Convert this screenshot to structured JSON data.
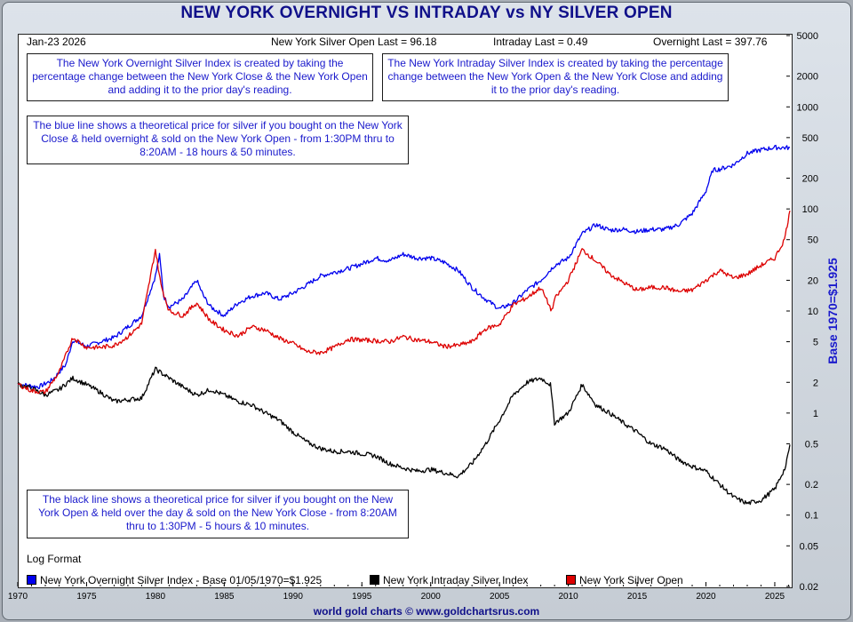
{
  "header": {
    "title": "NEW YORK OVERNIGHT VS INTRADAY vs NY SILVER OPEN",
    "date": "Jan-23  2026",
    "open_last": "New York Silver Open Last = 96.18",
    "intraday_last": "Intraday Last = 0.49",
    "overnight_last": "Overnight Last = 397.76"
  },
  "notes": {
    "overnight_def": "The New York Overnight Silver Index is created by taking the percentage change between the New York Close & the New York Open and adding it to the prior day's reading.",
    "intraday_def": "The New York Intraday Silver Index is created by taking the percentage change between the New York Open & the New York Close and adding it to the prior day's reading.",
    "blue_line": "The blue line shows a theoretical price for silver if you bought on the New York Close & held overnight & sold on the New York Open - from 1:30PM thru to 8:20AM - 18 hours & 50 minutes.",
    "black_line": "The black line shows a theoretical price for silver if you bought on the New York Open & held over the day & sold on the New York Close - from 8:20AM thru to 1:30PM - 5 hours & 10 minutes."
  },
  "footer": {
    "log_format": "Log Format",
    "credit": "world gold charts © www.goldchartsrus.com"
  },
  "colors": {
    "overnight": "#0000ee",
    "intraday": "#000000",
    "open": "#dd0000",
    "title": "#10108a"
  },
  "chart_data": {
    "type": "line",
    "title": "NEW YORK OVERNIGHT VS INTRADAY vs NY SILVER OPEN",
    "ylabel": "Base 1970=$1.925",
    "yscale": "log",
    "ylim": [
      0.02,
      5000
    ],
    "xlim": [
      1970,
      2026.1
    ],
    "x_ticks": [
      "1970",
      "1975",
      "1980",
      "1985",
      "1990",
      "1995",
      "2000",
      "2005",
      "2010",
      "2015",
      "2020",
      "2025"
    ],
    "y_ticks": [
      "5000",
      "2000",
      "1000",
      "500",
      "200",
      "100",
      "50",
      "20",
      "10",
      "5",
      "2",
      "1",
      "0.5",
      "0.2",
      "0.1",
      "0.05",
      "0.02"
    ],
    "legend_position": "bottom",
    "series": [
      {
        "name": "New York Overnight Silver Index - Base 01/05/1970=$1.925",
        "color": "#0000ee",
        "points": [
          [
            1970,
            1.925
          ],
          [
            1971.5,
            1.8
          ],
          [
            1972.5,
            2.1
          ],
          [
            1973.5,
            3
          ],
          [
            1974,
            5.2
          ],
          [
            1975,
            4.5
          ],
          [
            1976,
            5
          ],
          [
            1977,
            5.5
          ],
          [
            1978,
            7
          ],
          [
            1979,
            9
          ],
          [
            1980,
            22
          ],
          [
            1980.3,
            35
          ],
          [
            1980.6,
            14
          ],
          [
            1981,
            11
          ],
          [
            1982,
            13
          ],
          [
            1983,
            20
          ],
          [
            1983.5,
            14
          ],
          [
            1984,
            11
          ],
          [
            1985,
            9
          ],
          [
            1986,
            12
          ],
          [
            1987,
            14
          ],
          [
            1988,
            15
          ],
          [
            1989,
            13
          ],
          [
            1990,
            15
          ],
          [
            1991,
            18
          ],
          [
            1992,
            22
          ],
          [
            1993,
            24
          ],
          [
            1994,
            26
          ],
          [
            1995,
            29
          ],
          [
            1996,
            33
          ],
          [
            1997,
            31
          ],
          [
            1998,
            36
          ],
          [
            1999,
            33
          ],
          [
            2000,
            33
          ],
          [
            2001,
            30
          ],
          [
            2002,
            25
          ],
          [
            2003,
            17
          ],
          [
            2004,
            13
          ],
          [
            2005,
            10.5
          ],
          [
            2006,
            12
          ],
          [
            2007,
            16
          ],
          [
            2008,
            20
          ],
          [
            2009,
            28
          ],
          [
            2010,
            33
          ],
          [
            2011,
            57
          ],
          [
            2012,
            70
          ],
          [
            2013,
            62
          ],
          [
            2014,
            63
          ],
          [
            2015,
            60
          ],
          [
            2016,
            63
          ],
          [
            2017,
            63
          ],
          [
            2018,
            70
          ],
          [
            2019,
            90
          ],
          [
            2020,
            150
          ],
          [
            2020.5,
            240
          ],
          [
            2021,
            245
          ],
          [
            2022,
            270
          ],
          [
            2023,
            350
          ],
          [
            2024,
            380
          ],
          [
            2025,
            400
          ],
          [
            2026.1,
            398
          ]
        ]
      },
      {
        "name": "New York Intraday Silver Index",
        "color": "#000000",
        "points": [
          [
            1970,
            1.925
          ],
          [
            1971,
            1.75
          ],
          [
            1972,
            1.5
          ],
          [
            1973,
            1.7
          ],
          [
            1974,
            2.2
          ],
          [
            1975,
            1.9
          ],
          [
            1976,
            1.6
          ],
          [
            1977,
            1.3
          ],
          [
            1978,
            1.35
          ],
          [
            1979,
            1.4
          ],
          [
            1980,
            2.7
          ],
          [
            1981,
            2.2
          ],
          [
            1982,
            1.8
          ],
          [
            1983,
            1.5
          ],
          [
            1984,
            1.7
          ],
          [
            1985,
            1.5
          ],
          [
            1986,
            1.3
          ],
          [
            1987,
            1.2
          ],
          [
            1988,
            1
          ],
          [
            1989,
            0.85
          ],
          [
            1990,
            0.65
          ],
          [
            1991,
            0.52
          ],
          [
            1992,
            0.45
          ],
          [
            1993,
            0.42
          ],
          [
            1994,
            0.42
          ],
          [
            1995,
            0.4
          ],
          [
            1996,
            0.38
          ],
          [
            1997,
            0.32
          ],
          [
            1998,
            0.29
          ],
          [
            1999,
            0.27
          ],
          [
            2000,
            0.28
          ],
          [
            2001,
            0.26
          ],
          [
            2002,
            0.24
          ],
          [
            2003,
            0.32
          ],
          [
            2004,
            0.5
          ],
          [
            2005,
            0.85
          ],
          [
            2006,
            1.5
          ],
          [
            2007,
            2
          ],
          [
            2008,
            2.2
          ],
          [
            2008.7,
            1.9
          ],
          [
            2009,
            0.8
          ],
          [
            2010,
            1
          ],
          [
            2011,
            1.9
          ],
          [
            2012,
            1.2
          ],
          [
            2013,
            1
          ],
          [
            2014,
            0.8
          ],
          [
            2015,
            0.65
          ],
          [
            2016,
            0.5
          ],
          [
            2017,
            0.45
          ],
          [
            2018,
            0.35
          ],
          [
            2019,
            0.3
          ],
          [
            2020,
            0.27
          ],
          [
            2021,
            0.2
          ],
          [
            2022,
            0.15
          ],
          [
            2023,
            0.13
          ],
          [
            2024,
            0.14
          ],
          [
            2025,
            0.18
          ],
          [
            2025.8,
            0.3
          ],
          [
            2026.1,
            0.49
          ]
        ]
      },
      {
        "name": "New York Silver Open",
        "color": "#dd0000",
        "points": [
          [
            1970,
            1.925
          ],
          [
            1971,
            1.65
          ],
          [
            1972,
            1.6
          ],
          [
            1973,
            2.5
          ],
          [
            1974,
            5.5
          ],
          [
            1975,
            4.4
          ],
          [
            1976,
            4.4
          ],
          [
            1977,
            4.6
          ],
          [
            1978,
            5.6
          ],
          [
            1979,
            7.5
          ],
          [
            1980,
            40
          ],
          [
            1980.4,
            18
          ],
          [
            1981,
            10
          ],
          [
            1982,
            9
          ],
          [
            1983,
            12
          ],
          [
            1984,
            8
          ],
          [
            1985,
            6.5
          ],
          [
            1986,
            5.7
          ],
          [
            1987,
            7
          ],
          [
            1988,
            6.5
          ],
          [
            1989,
            5.4
          ],
          [
            1990,
            4.8
          ],
          [
            1991,
            4
          ],
          [
            1992,
            3.9
          ],
          [
            1993,
            4.4
          ],
          [
            1994,
            5.3
          ],
          [
            1995,
            5.2
          ],
          [
            1996,
            5.1
          ],
          [
            1997,
            5
          ],
          [
            1998,
            5.6
          ],
          [
            1999,
            5.2
          ],
          [
            2000,
            5
          ],
          [
            2001,
            4.5
          ],
          [
            2002,
            4.6
          ],
          [
            2003,
            5
          ],
          [
            2004,
            6.7
          ],
          [
            2005,
            7.4
          ],
          [
            2006,
            11.5
          ],
          [
            2007,
            13.5
          ],
          [
            2008,
            17
          ],
          [
            2008.8,
            10
          ],
          [
            2009,
            13
          ],
          [
            2010,
            20
          ],
          [
            2011,
            40
          ],
          [
            2012,
            31
          ],
          [
            2013,
            23
          ],
          [
            2014,
            19
          ],
          [
            2015,
            16
          ],
          [
            2016,
            17
          ],
          [
            2017,
            17
          ],
          [
            2018,
            15.5
          ],
          [
            2019,
            16
          ],
          [
            2020,
            20
          ],
          [
            2021,
            25
          ],
          [
            2022,
            21
          ],
          [
            2023,
            23
          ],
          [
            2024,
            28
          ],
          [
            2025,
            33
          ],
          [
            2025.7,
            50
          ],
          [
            2026.1,
            96.18
          ]
        ]
      }
    ]
  }
}
